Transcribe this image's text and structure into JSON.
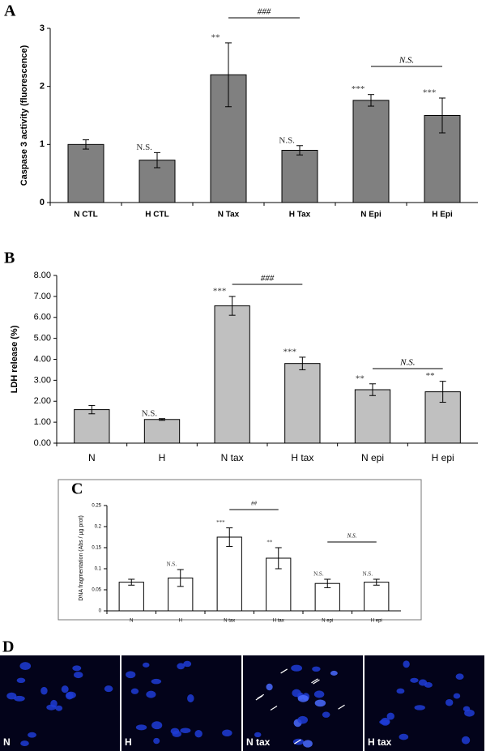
{
  "panel_labels": [
    "A",
    "B",
    "C",
    "D"
  ],
  "image_labels": [
    "N",
    "H",
    "N tax",
    "H tax"
  ],
  "chart_data": [
    {
      "type": "bar",
      "y_label": "Caspase 3 activity (fluorescence)",
      "categories": [
        "N CTL",
        "H CTL",
        "N Tax",
        "H Tax",
        "N Epi",
        "H Epi"
      ],
      "values": [
        1.0,
        0.73,
        2.2,
        0.9,
        1.76,
        1.5
      ],
      "errors": [
        0.08,
        0.13,
        0.55,
        0.08,
        0.1,
        0.3
      ],
      "color": "#808080",
      "annotations": [
        null,
        "N.S.",
        "**",
        "N.S.",
        "***",
        "***"
      ],
      "brackets": [
        {
          "between": [
            "N Tax",
            "H Tax"
          ],
          "label": "###"
        },
        {
          "between": [
            "N Epi",
            "H Epi"
          ],
          "label": "N.S."
        }
      ],
      "ylim": [
        0,
        3
      ],
      "yticks": [
        0,
        1,
        2,
        3
      ]
    },
    {
      "type": "bar",
      "y_label": "LDH release (%)",
      "categories": [
        "N",
        "H",
        "N tax",
        "H tax",
        "N epi",
        "H epi"
      ],
      "values": [
        1.6,
        1.13,
        6.55,
        3.8,
        2.55,
        2.45
      ],
      "errors": [
        0.2,
        0.04,
        0.45,
        0.3,
        0.28,
        0.5
      ],
      "color": "#c0c0c0",
      "annotations": [
        null,
        "N.S.",
        "***",
        "***",
        "**",
        "**"
      ],
      "brackets": [
        {
          "between": [
            "N tax",
            "H tax"
          ],
          "label": "###"
        },
        {
          "between": [
            "N epi",
            "H epi"
          ],
          "label": "N.S."
        }
      ],
      "ylim": [
        0,
        8
      ],
      "yticks": [
        {
          "value": 0,
          "label": "0.00"
        },
        {
          "value": 1,
          "label": "1.00"
        },
        {
          "value": 2,
          "label": "2.00"
        },
        {
          "value": 3,
          "label": "3.00"
        },
        {
          "value": 4,
          "label": "4.00"
        },
        {
          "value": 5,
          "label": "5.00"
        },
        {
          "value": 6,
          "label": "6.00"
        },
        {
          "value": 7,
          "label": "7.00"
        },
        {
          "value": 8,
          "label": "8.00"
        }
      ]
    },
    {
      "type": "bar",
      "y_label": "DNA fragmentation (Abs / µg prot)",
      "categories": [
        "N",
        "H",
        "N tax",
        "H tax",
        "N epi",
        "H epi"
      ],
      "values": [
        0.068,
        0.078,
        0.175,
        0.125,
        0.065,
        0.068
      ],
      "errors": [
        0.007,
        0.02,
        0.022,
        0.025,
        0.01,
        0.007
      ],
      "color": "#ffffff",
      "annotations": [
        null,
        "N.S.",
        "***",
        "**",
        "N.S.",
        "N.S."
      ],
      "brackets": [
        {
          "between": [
            "N tax",
            "H tax"
          ],
          "label": "##"
        },
        {
          "between": [
            "N epi",
            "H epi"
          ],
          "label": "N.S."
        }
      ],
      "ylim": [
        0,
        0.25
      ],
      "yticks": [
        0,
        0.05,
        0.1,
        0.15,
        0.2,
        0.25
      ]
    }
  ]
}
